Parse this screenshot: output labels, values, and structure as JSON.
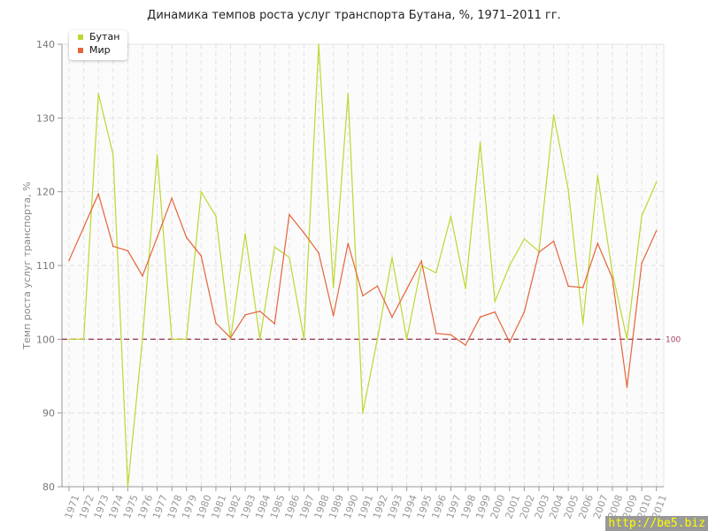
{
  "chart_data": {
    "type": "line",
    "title": "Динамика темпов роста услуг транспорта Бутана, %, 1971–2011 гг.",
    "ylabel": "Темп роста услуг транспорта, %",
    "xlabel": "",
    "ylim": [
      80,
      140
    ],
    "yticks": [
      80,
      90,
      100,
      110,
      120,
      130,
      140
    ],
    "grid": true,
    "legend_placement": "top-left",
    "reference_line": {
      "value": 100,
      "label": "100",
      "color": "#a04060"
    },
    "x": [
      1971,
      1972,
      1973,
      1974,
      1975,
      1976,
      1977,
      1978,
      1979,
      1980,
      1981,
      1982,
      1983,
      1984,
      1985,
      1986,
      1987,
      1988,
      1989,
      1990,
      1991,
      1992,
      1993,
      1994,
      1995,
      1996,
      1997,
      1998,
      1999,
      2000,
      2001,
      2002,
      2003,
      2004,
      2005,
      2006,
      2007,
      2008,
      2009,
      2010,
      2011
    ],
    "series": [
      {
        "name": "Бутан",
        "color": "#bcd832",
        "values": [
          100,
          100,
          133.3,
          125,
          80,
          100,
          125,
          100,
          100,
          120,
          116.7,
          100,
          114.3,
          100,
          112.5,
          111.1,
          100,
          140,
          107,
          133.3,
          90,
          100,
          111.1,
          100,
          110,
          109,
          116.7,
          106.9,
          126.7,
          105.1,
          110,
          113.6,
          111.9,
          130.4,
          120.3,
          102.1,
          122.2,
          109,
          100,
          116.7,
          121.3
        ]
      },
      {
        "name": "Мир",
        "color": "#e5643a",
        "values": [
          110.7,
          115.2,
          119.7,
          112.6,
          112,
          108.6,
          113.8,
          119.1,
          113.8,
          111.3,
          102.2,
          100.2,
          103.3,
          103.8,
          102.1,
          116.9,
          114.4,
          111.7,
          103.2,
          113,
          105.9,
          107.2,
          103,
          106.8,
          110.6,
          100.8,
          100.6,
          99.2,
          103,
          103.7,
          99.6,
          103.7,
          111.8,
          113.3,
          107.2,
          107,
          113,
          108.3,
          93.5,
          110.3,
          114.7
        ]
      }
    ]
  },
  "watermark": "http://be5.biz"
}
